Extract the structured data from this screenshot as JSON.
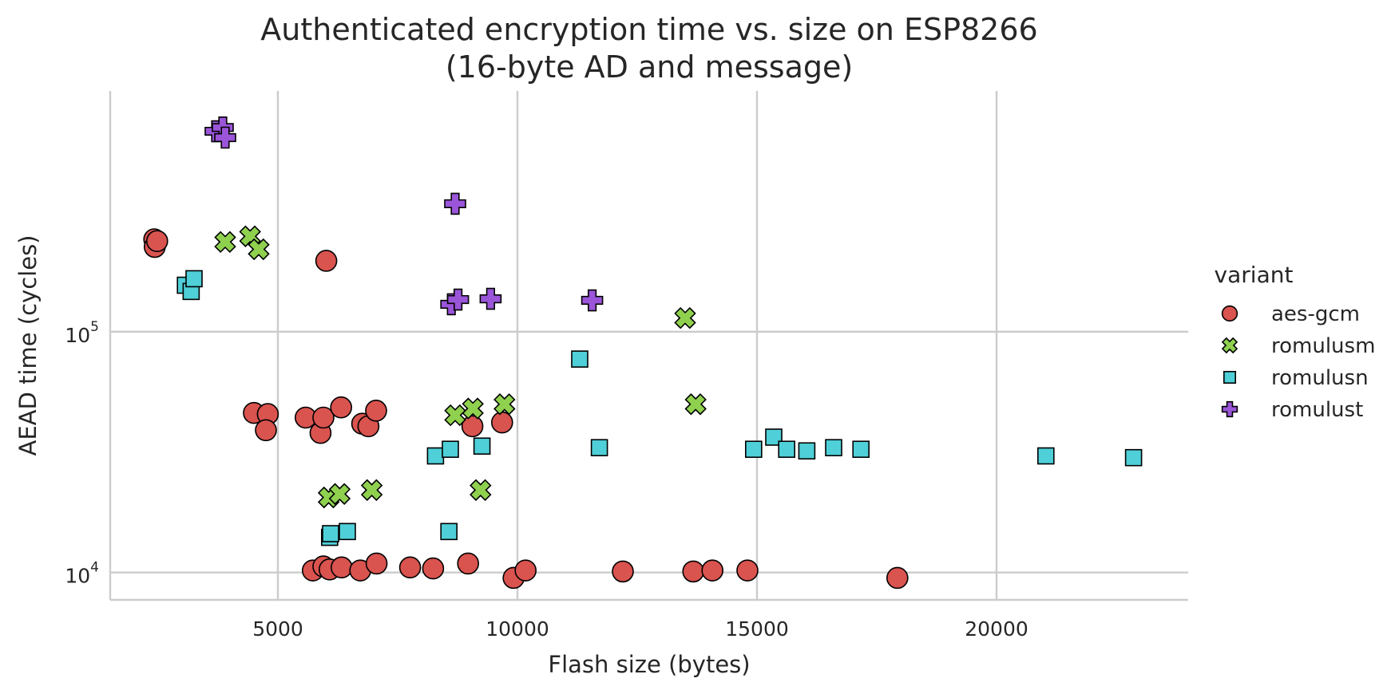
{
  "chart_data": {
    "type": "scatter",
    "title_line1": "Authenticated encryption time vs. size on ESP8266",
    "title_line2": "(16-byte AD and message)",
    "xlabel": "Flash size (bytes)",
    "ylabel": "AEAD time (cycles)",
    "xlim": [
      1500,
      24000
    ],
    "ylim": [
      7700,
      1000000
    ],
    "yscale": "log",
    "xticks": [
      5000,
      10000,
      15000,
      20000
    ],
    "xtick_labels": [
      "5000",
      "10000",
      "15000",
      "20000"
    ],
    "yticks": [
      {
        "value": 10000,
        "base": "10",
        "exp": "4"
      },
      {
        "value": 100000,
        "base": "10",
        "exp": "5"
      }
    ],
    "grid": true,
    "legend": {
      "title": "variant",
      "position": "right"
    },
    "series": [
      {
        "name": "aes-gcm",
        "marker": "circle",
        "color": "#d9534f",
        "points": [
          [
            2420,
            242000
          ],
          [
            2430,
            225000
          ],
          [
            2480,
            238000
          ],
          [
            6010,
            197000
          ],
          [
            4500,
            46000
          ],
          [
            4790,
            45500
          ],
          [
            4750,
            39000
          ],
          [
            5580,
            44000
          ],
          [
            5890,
            38000
          ],
          [
            5950,
            44000
          ],
          [
            6320,
            48500
          ],
          [
            6760,
            41500
          ],
          [
            6890,
            40500
          ],
          [
            7050,
            47000
          ],
          [
            9060,
            40500
          ],
          [
            9680,
            42000
          ],
          [
            5730,
            10200
          ],
          [
            5950,
            10600
          ],
          [
            6080,
            10300
          ],
          [
            6330,
            10500
          ],
          [
            6720,
            10200
          ],
          [
            7060,
            10900
          ],
          [
            7760,
            10500
          ],
          [
            8240,
            10400
          ],
          [
            8970,
            10900
          ],
          [
            9920,
            9500
          ],
          [
            10170,
            10200
          ],
          [
            12200,
            10100
          ],
          [
            13670,
            10100
          ],
          [
            14070,
            10200
          ],
          [
            14800,
            10200
          ],
          [
            17930,
            9500
          ]
        ]
      },
      {
        "name": "romulusm",
        "marker": "x",
        "color": "#8fd14f",
        "points": [
          [
            3900,
            236000
          ],
          [
            4420,
            249000
          ],
          [
            4600,
            220000
          ],
          [
            13500,
            114000
          ],
          [
            13720,
            50000
          ],
          [
            8700,
            45000
          ],
          [
            9070,
            48000
          ],
          [
            9730,
            50000
          ],
          [
            6060,
            20500
          ],
          [
            6290,
            21200
          ],
          [
            6960,
            22000
          ],
          [
            9230,
            22000
          ]
        ]
      },
      {
        "name": "romulusn",
        "marker": "square",
        "color": "#4fcfd8",
        "points": [
          [
            3070,
            156000
          ],
          [
            3190,
            147000
          ],
          [
            3250,
            166000
          ],
          [
            11300,
            77000
          ],
          [
            11710,
            33000
          ],
          [
            8290,
            30500
          ],
          [
            8600,
            32500
          ],
          [
            9260,
            33500
          ],
          [
            14930,
            32500
          ],
          [
            15350,
            36500
          ],
          [
            15620,
            32500
          ],
          [
            16040,
            32000
          ],
          [
            16600,
            33000
          ],
          [
            17170,
            32500
          ],
          [
            21030,
            30500
          ],
          [
            22860,
            30000
          ],
          [
            6080,
            14000
          ],
          [
            6100,
            14500
          ],
          [
            6450,
            14800
          ],
          [
            8570,
            14800
          ]
        ]
      },
      {
        "name": "romulust",
        "marker": "plus",
        "color": "#9a55d8",
        "points": [
          [
            3700,
            680000
          ],
          [
            3850,
            705000
          ],
          [
            3900,
            640000
          ],
          [
            8700,
            340000
          ],
          [
            8620,
            130000
          ],
          [
            8760,
            136000
          ],
          [
            9440,
            137000
          ],
          [
            11560,
            135000
          ]
        ]
      }
    ]
  }
}
